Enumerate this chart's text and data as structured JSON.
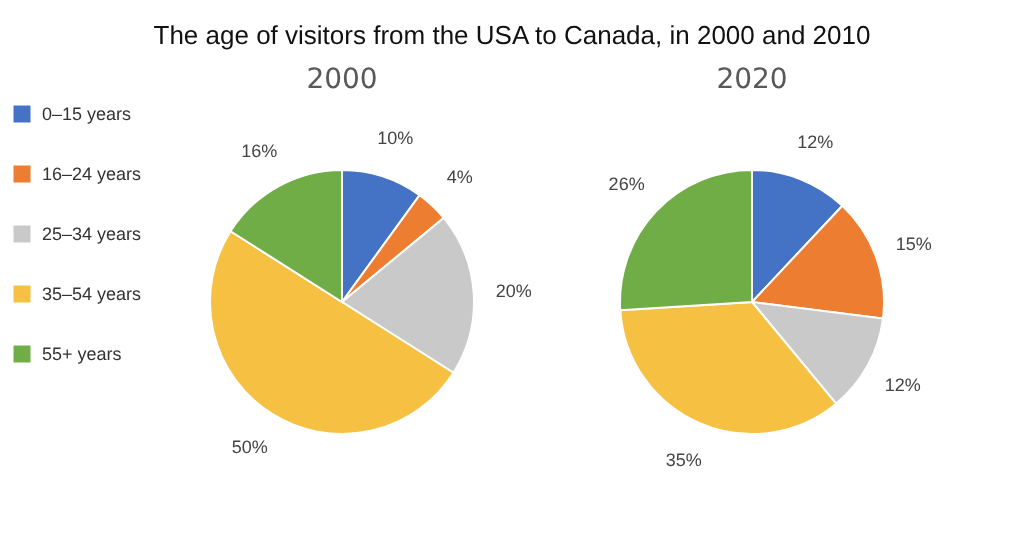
{
  "chart_data": {
    "type": "pie",
    "title": "The age of visitors from the USA to Canada, in 2000 and 2010",
    "categories": [
      "0–15 years",
      "16–24 years",
      "25–34 years",
      "35–54 years",
      "55+ years"
    ],
    "colors": [
      "#4472c4",
      "#ed7d31",
      "#c9c9c9",
      "#f6c143",
      "#70ad47"
    ],
    "legend": "left",
    "series": [
      {
        "name": "2000",
        "values": [
          10,
          4,
          20,
          50,
          16
        ],
        "value_labels": [
          "10%",
          "4%",
          "20%",
          "50%",
          "16%"
        ]
      },
      {
        "name": "2020",
        "values": [
          12,
          15,
          12,
          35,
          26
        ],
        "value_labels": [
          "12%",
          "15%",
          "12%",
          "35%",
          "26%"
        ]
      }
    ]
  }
}
